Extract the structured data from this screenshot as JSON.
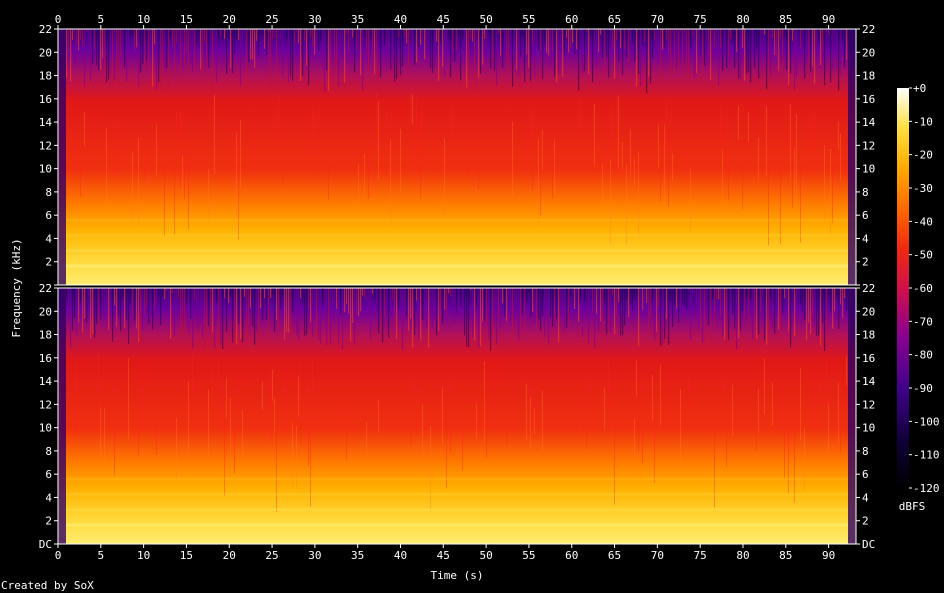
{
  "chart_data": {
    "type": "heatmap",
    "title": "",
    "xlabel": "Time (s)",
    "ylabel": "Frequency (kHz)",
    "x_ticks": [
      0,
      5,
      10,
      15,
      20,
      25,
      30,
      35,
      40,
      45,
      50,
      55,
      60,
      65,
      70,
      75,
      80,
      85,
      90
    ],
    "xlim": [
      0,
      93.2
    ],
    "ylim": [
      0,
      22
    ],
    "y_ticks": [
      "DC",
      "2",
      "4",
      "6",
      "8",
      "10",
      "12",
      "14",
      "16",
      "18",
      "20",
      "22"
    ],
    "channels": 2,
    "colorbar": {
      "label": "dBFS",
      "ticks": [
        "+0",
        "-10",
        "-20",
        "-30",
        "-40",
        "-50",
        "-60",
        "-70",
        "-80",
        "-90",
        "-100",
        "-110",
        "-120"
      ],
      "range": [
        -120,
        0
      ]
    },
    "colors": {
      "background": "#000000",
      "palette": [
        "#000000",
        "#18004a",
        "#5a00a0",
        "#a0007a",
        "#e01010",
        "#ff5a00",
        "#ffb000",
        "#ffe840",
        "#ffffff"
      ]
    }
  },
  "footer": {
    "credit": "Created by SoX"
  }
}
